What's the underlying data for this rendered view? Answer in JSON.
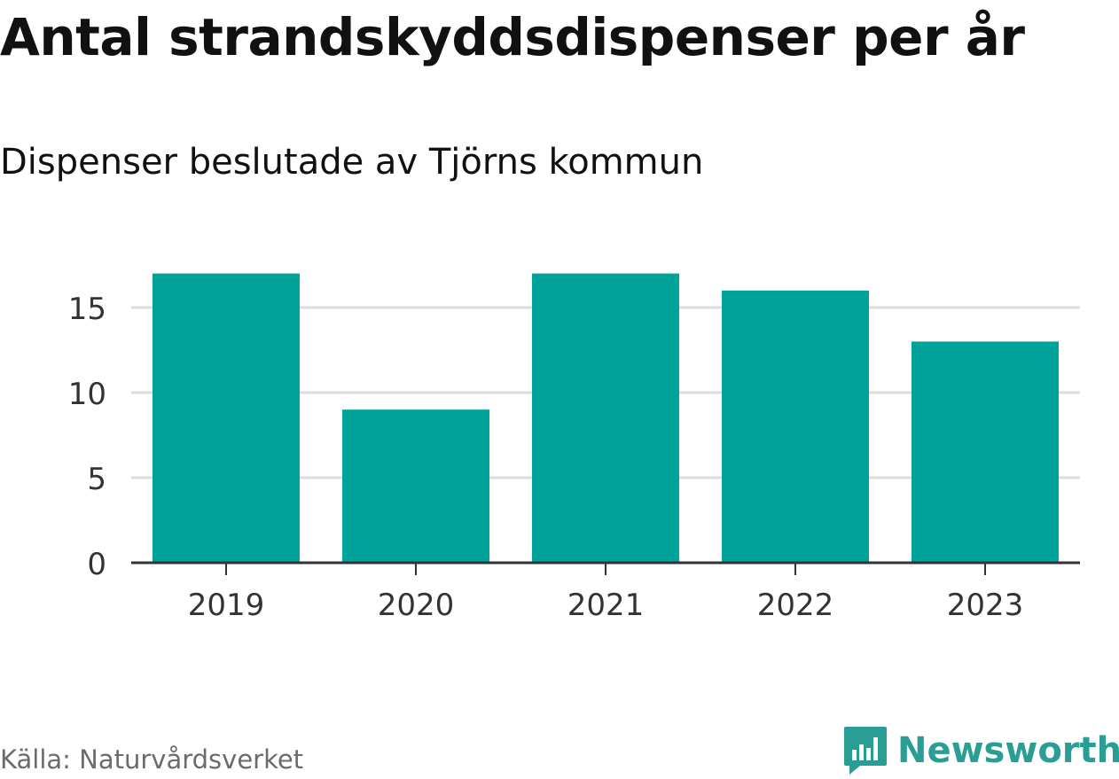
{
  "title": "Antal strandskyddsdispenser per år",
  "subtitle": "Dispenser beslutade av Tjörns kommun",
  "source": "Källa: Naturvårdsverket",
  "brand": {
    "name": "Newsworthy",
    "icon": "newsworthy-logo-icon",
    "color": "#2a9d94"
  },
  "colors": {
    "bar": "#00a39a",
    "grid": "#dddddd",
    "axis": "#333333"
  },
  "chart_data": {
    "type": "bar",
    "title": "Antal strandskyddsdispenser per år",
    "subtitle": "Dispenser beslutade av Tjörns kommun",
    "xlabel": "",
    "ylabel": "",
    "categories": [
      "2019",
      "2020",
      "2021",
      "2022",
      "2023"
    ],
    "values": [
      17,
      9,
      17,
      16,
      13
    ],
    "ylim": [
      0,
      18
    ],
    "yticks": [
      0,
      5,
      10,
      15
    ],
    "grid": true,
    "legend": "none"
  }
}
